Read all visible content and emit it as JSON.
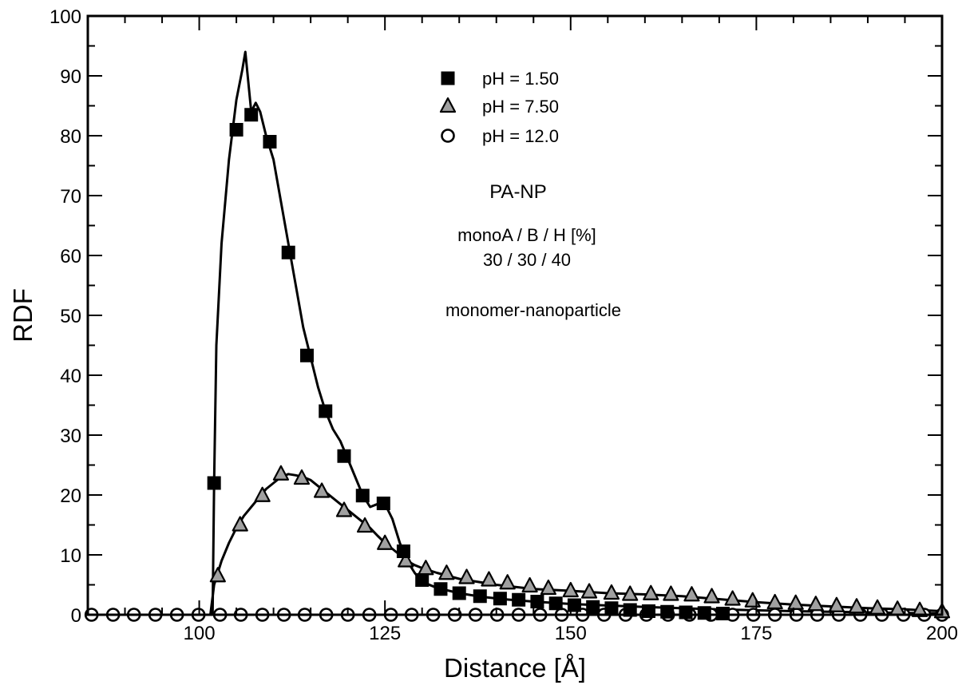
{
  "chart_data": {
    "type": "line",
    "xlabel": "Distance [Å]",
    "ylabel": "RDF",
    "xlim": [
      85,
      200
    ],
    "ylim": [
      0,
      100
    ],
    "x_ticks": [
      100,
      125,
      150,
      175,
      200
    ],
    "y_ticks": [
      0,
      10,
      20,
      30,
      40,
      50,
      60,
      70,
      80,
      90,
      100
    ],
    "grid": false,
    "legend_position": "top-center",
    "annotations": [
      "PA-NP",
      "monoA / B / H [%]",
      "30 / 30 / 40",
      "monomer-nanoparticle"
    ],
    "series": [
      {
        "name": "pH = 1.50",
        "marker": "filled-square",
        "color": "#000000",
        "x": [
          85,
          100,
          101.8,
          102,
          102.3,
          103,
          104,
          105,
          105.8,
          106.2,
          106.6,
          107,
          107.6,
          108.2,
          109,
          110,
          111,
          112,
          113,
          114,
          115,
          116,
          117,
          118,
          119,
          120,
          121,
          122,
          123,
          124,
          125,
          126,
          127,
          128,
          129,
          130,
          132,
          135,
          138,
          141,
          145,
          150,
          160,
          170,
          180,
          190,
          200
        ],
        "y": [
          0,
          0,
          0,
          22,
          45,
          62,
          76,
          86,
          91,
          94,
          89,
          84,
          85.5,
          84,
          80,
          76,
          69,
          62,
          55,
          48,
          43,
          38,
          34,
          31,
          29,
          26,
          23,
          20,
          18,
          18.5,
          18.5,
          16,
          12,
          9,
          7,
          5.5,
          4.5,
          3.6,
          3.0,
          2.6,
          2.2,
          1.8,
          1.3,
          0.9,
          0.6,
          0.4,
          0.2
        ],
        "marker_x": [
          102,
          105,
          107,
          109.5,
          112,
          114.5,
          117,
          119.5,
          122,
          124.8,
          127.5,
          130,
          132.5,
          135,
          137.8,
          140.5,
          143,
          145.5,
          148,
          150.5,
          153,
          155.5,
          158,
          160.5,
          163,
          165.5,
          168,
          170.5
        ],
        "marker_y": [
          22,
          81,
          83.5,
          79,
          60.5,
          43.3,
          34,
          26.5,
          19.9,
          18.6,
          10.6,
          5.8,
          4.3,
          3.6,
          3.1,
          2.7,
          2.5,
          2.2,
          1.9,
          1.6,
          1.3,
          1.1,
          0.8,
          0.6,
          0.5,
          0.4,
          0.3,
          0.2
        ]
      },
      {
        "name": "pH = 7.50",
        "marker": "gray-triangle",
        "color": "#000000",
        "x": [
          85,
          101.5,
          102,
          103,
          104,
          105,
          106,
          107,
          108,
          109,
          110,
          111,
          112,
          113,
          114,
          115,
          116,
          117,
          118,
          119,
          120,
          121,
          122,
          123,
          124,
          125,
          126,
          127,
          128,
          129,
          130,
          132,
          135,
          140,
          145,
          150,
          155,
          160,
          165,
          170,
          175,
          180,
          185,
          190,
          195,
          200
        ],
        "y": [
          0,
          0,
          5,
          9,
          12,
          14.5,
          16.5,
          18,
          19.5,
          21,
          22,
          23,
          23.5,
          23.3,
          23,
          22.5,
          21.5,
          20.5,
          19.5,
          18.5,
          17.5,
          16.5,
          15.5,
          14.5,
          13.2,
          12,
          11,
          10,
          9,
          8.3,
          7.8,
          7,
          6,
          5,
          4.3,
          4,
          3.6,
          3.4,
          3.1,
          2.6,
          2.1,
          1.7,
          1.4,
          1.1,
          0.9,
          0.6
        ],
        "marker_x": [
          102.5,
          105.5,
          108.5,
          111,
          113.8,
          116.5,
          119.5,
          122.3,
          125,
          127.8,
          130.5,
          133.3,
          136,
          139,
          141.5,
          144.5,
          147,
          150,
          152.5,
          155.5,
          158,
          160.8,
          163.5,
          166.3,
          169,
          171.8,
          174.5,
          177.5,
          180.3,
          183,
          185.8,
          188.5,
          191.3,
          194,
          197,
          200
        ],
        "marker_y": [
          6.5,
          15,
          19.9,
          23.5,
          22.8,
          20.6,
          17.4,
          14.8,
          11.9,
          9.0,
          7.7,
          6.9,
          6.2,
          5.8,
          5.3,
          4.8,
          4.4,
          4.0,
          3.8,
          3.6,
          3.4,
          3.5,
          3.4,
          3.3,
          3.0,
          2.6,
          2.3,
          2.0,
          1.9,
          1.7,
          1.5,
          1.3,
          1.1,
          0.9,
          0.7,
          0.5
        ]
      },
      {
        "name": "pH = 12.0",
        "marker": "open-circle",
        "color": "#000000",
        "x": [
          85,
          200
        ],
        "y": [
          0,
          0
        ],
        "marker_x": [
          85.5,
          88.4,
          91.2,
          94.1,
          97,
          99.9,
          102.8,
          105.6,
          108.5,
          111.4,
          114.2,
          117.1,
          120,
          122.9,
          125.8,
          128.6,
          131.5,
          134.4,
          137.2,
          140.1,
          143,
          145.9,
          148.8,
          151.6,
          154.5,
          157.4,
          160.2,
          163.1,
          166,
          168.9,
          171.8,
          174.6,
          177.5,
          180.4,
          183.2,
          186.1,
          189,
          191.9,
          194.8,
          197.6,
          200
        ],
        "marker_y": [
          0,
          0,
          0,
          0,
          0,
          0,
          0,
          0,
          0,
          0,
          0,
          0,
          0,
          0,
          0,
          0,
          0,
          0,
          0,
          0,
          0,
          0,
          0,
          0,
          0,
          0,
          0,
          0,
          0,
          0,
          0,
          0,
          0,
          0,
          0,
          0,
          0,
          0,
          0,
          0,
          0
        ]
      }
    ]
  }
}
